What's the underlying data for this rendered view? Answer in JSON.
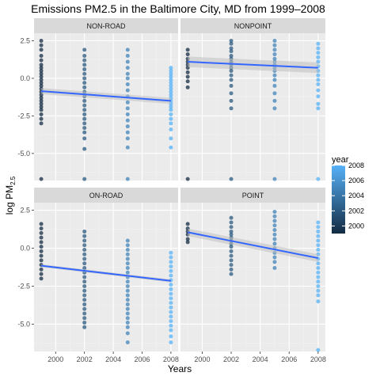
{
  "chart_data": {
    "type": "scatter",
    "title": "Emissions PM2.5 in the Baltimore City, MD from 1999–2008",
    "xlabel": "Years",
    "ylabel_main": "log PM",
    "ylabel_sub": "2.5",
    "xlim": [
      1998.5,
      2008.5
    ],
    "ylim": [
      -6.8,
      3.0
    ],
    "x_ticks": [
      2000,
      2002,
      2004,
      2006,
      2008
    ],
    "x_tick_labels": [
      "2000",
      "2002",
      "2004",
      "2006",
      "2008"
    ],
    "y_ticks": [
      2.5,
      0.0,
      -2.5,
      -5.0
    ],
    "y_tick_labels": [
      "2.5",
      "0.0",
      "-2.5",
      "-5.0"
    ],
    "grid": true,
    "legend": {
      "title": "year",
      "placement": "right",
      "ticks": [
        2008,
        2006,
        2004,
        2002,
        2000
      ],
      "tick_labels": [
        "2008",
        "2006",
        "2004",
        "2002",
        "2000"
      ],
      "range": [
        1999,
        2008
      ],
      "low_color": "#132B43",
      "high_color": "#56B1F7"
    },
    "trend_color": "#3366FF",
    "band_color": "#BFBFBF",
    "panels": [
      {
        "name": "NON-ROAD",
        "points": [
          {
            "x": 1999,
            "y": [
              2.5,
              2.2,
              1.9,
              1.5,
              1.2,
              0.9,
              0.7,
              0.5,
              0.3,
              0.1,
              -0.1,
              -0.3,
              -0.5,
              -0.7,
              -0.9,
              -1.1,
              -1.3,
              -1.5,
              -1.7,
              -1.9,
              -2.1,
              -2.4,
              -2.7,
              -3.0,
              -6.7
            ]
          },
          {
            "x": 2002,
            "y": [
              1.9,
              1.5,
              1.2,
              0.9,
              0.6,
              0.3,
              0.0,
              -0.3,
              -0.6,
              -0.9,
              -1.2,
              -1.5,
              -1.8,
              -2.1,
              -2.4,
              -2.7,
              -3.0,
              -3.3,
              -3.6,
              -4.0,
              -4.7,
              -6.7
            ]
          },
          {
            "x": 2005,
            "y": [
              1.9,
              1.5,
              1.1,
              0.7,
              0.3,
              0.0,
              -0.4,
              -0.8,
              -1.2,
              -1.6,
              -2.0,
              -2.4,
              -2.8,
              -3.2,
              -3.6,
              -4.0,
              -4.6,
              -6.7
            ]
          },
          {
            "x": 2008,
            "y": [
              0.7,
              0.5,
              0.3,
              0.1,
              -0.1,
              -0.3,
              -0.5,
              -0.7,
              -0.9,
              -1.1,
              -1.3,
              -1.5,
              -1.7,
              -1.9,
              -2.1,
              -2.4,
              -2.7,
              -3.0,
              -3.4,
              -4.0,
              -4.6
            ]
          }
        ],
        "trend": {
          "y1999": -0.85,
          "y2008": -1.5,
          "band": 0.2
        }
      },
      {
        "name": "NONPOINT",
        "points": [
          {
            "x": 1999,
            "y": [
              1.9,
              1.6,
              1.3,
              1.1,
              0.9,
              0.7,
              0.4,
              0.1,
              -0.2,
              -0.6,
              -6.7
            ]
          },
          {
            "x": 2002,
            "y": [
              2.5,
              2.3,
              2.0,
              1.8,
              1.5,
              1.3,
              1.1,
              0.9,
              0.7,
              0.5,
              0.2,
              -0.1,
              -0.5,
              -1.0,
              -1.5,
              -2.0,
              -6.7
            ]
          },
          {
            "x": 2005,
            "y": [
              2.5,
              2.2,
              1.9,
              1.6,
              1.3,
              1.1,
              0.9,
              0.7,
              0.5,
              0.2,
              -0.1,
              -0.5,
              -1.0,
              -1.5,
              -2.0,
              -6.7
            ]
          },
          {
            "x": 2008,
            "y": [
              2.3,
              2.0,
              1.7,
              1.4,
              1.1,
              0.8,
              0.5,
              0.2,
              -0.1,
              -0.4,
              -0.8,
              -1.2,
              -1.7,
              -2.0,
              -6.7
            ]
          }
        ],
        "trend": {
          "y1999": 1.1,
          "y2008": 0.7,
          "band": 0.35
        }
      },
      {
        "name": "ON-ROAD",
        "points": [
          {
            "x": 1999,
            "y": [
              1.6,
              1.3,
              1.0,
              0.7,
              0.4,
              0.1,
              -0.2,
              -0.5,
              -0.8,
              -1.1,
              -1.4,
              -1.7,
              -2.0
            ]
          },
          {
            "x": 2002,
            "y": [
              1.1,
              0.8,
              0.5,
              0.2,
              -0.1,
              -0.4,
              -0.7,
              -1.0,
              -1.3,
              -1.6,
              -1.9,
              -2.2,
              -2.5,
              -2.8,
              -3.1,
              -3.4,
              -3.7,
              -4.0,
              -4.3,
              -4.6,
              -4.9,
              -5.2
            ]
          },
          {
            "x": 2005,
            "y": [
              0.5,
              0.2,
              -0.1,
              -0.4,
              -0.7,
              -1.0,
              -1.3,
              -1.6,
              -1.9,
              -2.2,
              -2.5,
              -2.8,
              -3.1,
              -3.4,
              -3.7,
              -4.0,
              -4.3,
              -4.6,
              -4.9,
              -5.2,
              -5.6,
              -6.2
            ]
          },
          {
            "x": 2008,
            "y": [
              -0.3,
              -0.6,
              -0.9,
              -1.2,
              -1.5,
              -1.8,
              -2.1,
              -2.4,
              -2.7,
              -3.0,
              -3.3,
              -3.6,
              -3.9,
              -4.2,
              -4.5,
              -4.8,
              -5.1,
              -5.4,
              -5.8,
              -6.2
            ]
          }
        ],
        "trend": {
          "y1999": -1.15,
          "y2008": -2.15,
          "band": 0.1
        }
      },
      {
        "name": "POINT",
        "points": [
          {
            "x": 1999,
            "y": [
              1.6,
              1.3,
              1.1,
              0.9,
              0.6,
              0.4
            ]
          },
          {
            "x": 2002,
            "y": [
              2.0,
              1.7,
              1.4,
              1.1,
              0.9,
              0.7,
              0.5,
              0.3,
              0.1,
              -0.2,
              -0.5,
              -0.8,
              -1.1,
              -1.4,
              -1.7
            ]
          },
          {
            "x": 2005,
            "y": [
              2.4,
              2.1,
              1.8,
              1.5,
              1.2,
              0.9,
              0.6,
              0.3,
              0.0,
              -0.3,
              -0.6,
              -0.9,
              -1.3
            ]
          },
          {
            "x": 2008,
            "y": [
              1.7,
              1.4,
              1.1,
              0.8,
              0.5,
              0.2,
              -0.1,
              -0.4,
              -0.7,
              -1.0,
              -1.3,
              -1.6,
              -1.9,
              -2.2,
              -2.5,
              -2.8,
              -3.1,
              -3.5,
              -6.7
            ]
          }
        ],
        "trend": {
          "y1999": 1.05,
          "y2008": -0.65,
          "band": 0.25
        }
      }
    ]
  }
}
